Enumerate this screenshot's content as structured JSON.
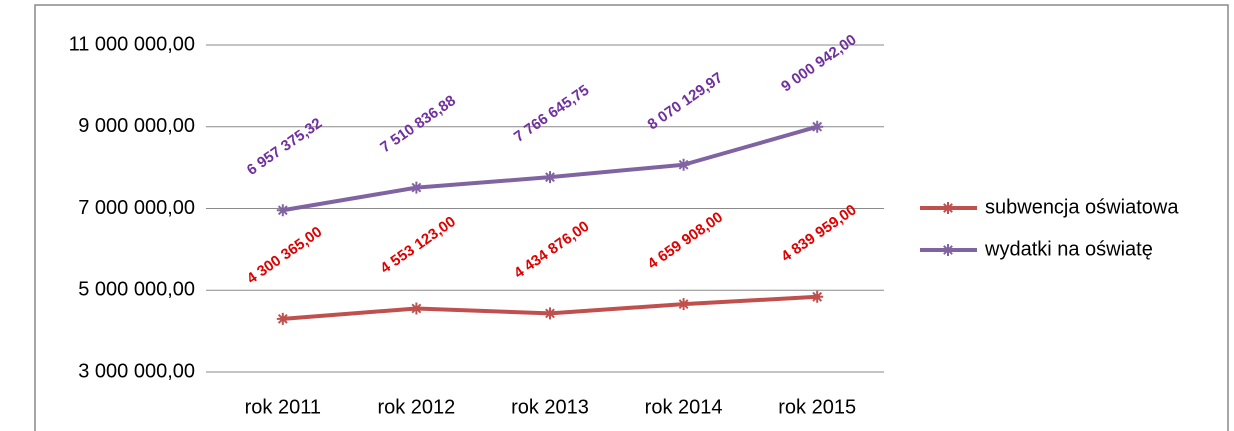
{
  "chart_data": {
    "type": "line",
    "categories": [
      "rok 2011",
      "rok 2012",
      "rok 2013",
      "rok 2014",
      "rok 2015"
    ],
    "series": [
      {
        "name": "subwencja oświatowa",
        "color": "#c0504d",
        "label_color": "#e00000",
        "values": [
          4300365.0,
          4553123.0,
          4434876.0,
          4659908.0,
          4839959.0
        ],
        "value_labels": [
          "4 300 365,00",
          "4 553 123,00",
          "4 434 876,00",
          "4 659 908,00",
          "4 839 959,00"
        ]
      },
      {
        "name": "wydatki na oświatę",
        "color": "#8064a2",
        "label_color": "#7030a0",
        "values": [
          6957375.32,
          7510836.88,
          7766645.75,
          8070129.97,
          9000942.0
        ],
        "value_labels": [
          "6 957 375,32",
          "7 510 836,88",
          "7 766 645,75",
          "8 070 129,97",
          "9 000 942,00"
        ]
      }
    ],
    "ylim": [
      3000000,
      11000000
    ],
    "yticks": [
      {
        "value": 3000000,
        "label": "3 000 000,00"
      },
      {
        "value": 5000000,
        "label": "5 000 000,00"
      },
      {
        "value": 7000000,
        "label": "7 000 000,00"
      },
      {
        "value": 9000000,
        "label": "9 000 000,00"
      },
      {
        "value": 11000000,
        "label": "11 000 000,00"
      }
    ],
    "grid": true,
    "legend": "right"
  }
}
